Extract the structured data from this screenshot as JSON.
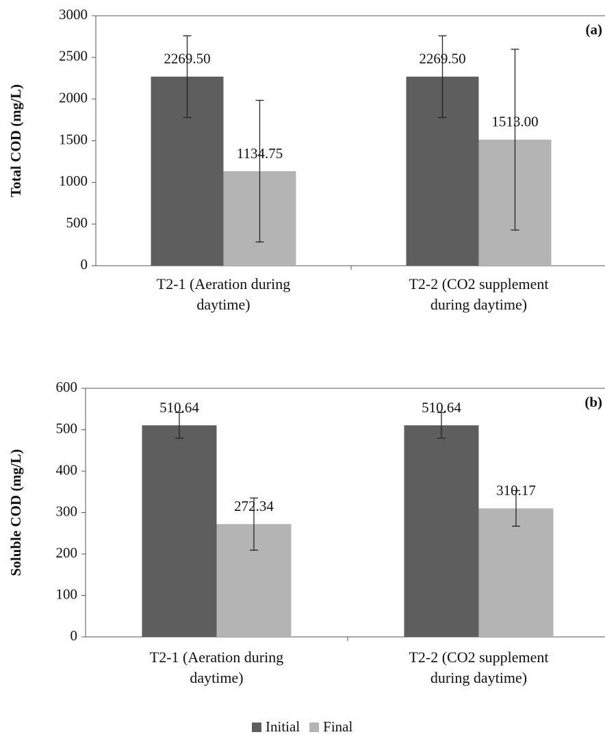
{
  "chart_data": [
    {
      "type": "bar",
      "title": "(a)",
      "y_label": "Total COD (mg/L)",
      "categories": [
        "T2-1 (Aeration during daytime)",
        "T2-2 (CO2 supplement during daytime)"
      ],
      "series": [
        {
          "color": "#5e5e5e",
          "values": [
            2269.5,
            2269.5
          ],
          "value_labels": [
            "2269.50",
            "2269.50"
          ],
          "errors": [
            490,
            490
          ]
        },
        {
          "color": "#b4b4b4",
          "values": [
            1134.75,
            1513
          ],
          "value_labels": [
            "1134.75",
            "1513.00"
          ],
          "errors": [
            850,
            1085
          ]
        }
      ],
      "ylim": [
        0,
        3000
      ],
      "yticks": [
        0,
        500,
        1000,
        1500,
        2000,
        2500,
        3000
      ]
    },
    {
      "type": "bar",
      "title": "(b)",
      "y_label": "Soluble COD (mg/L)",
      "categories": [
        "T2-1 (Aeration during daytime)",
        "T2-2 (CO2 supplement during daytime)"
      ],
      "series": [
        {
          "name": "Initial",
          "color": "#5e5e5e",
          "values": [
            510.64,
            510.64
          ],
          "value_labels": [
            "510.64",
            "510.64"
          ],
          "errors": [
            31,
            31
          ]
        },
        {
          "name": "Final",
          "color": "#b4b4b4",
          "values": [
            272.34,
            310.17
          ],
          "value_labels": [
            "272.34",
            "310.17"
          ],
          "errors": [
            63,
            43
          ]
        }
      ],
      "ylim": [
        0,
        600
      ],
      "yticks": [
        0,
        100,
        200,
        300,
        400,
        500,
        600
      ],
      "legend": "bottom"
    }
  ]
}
